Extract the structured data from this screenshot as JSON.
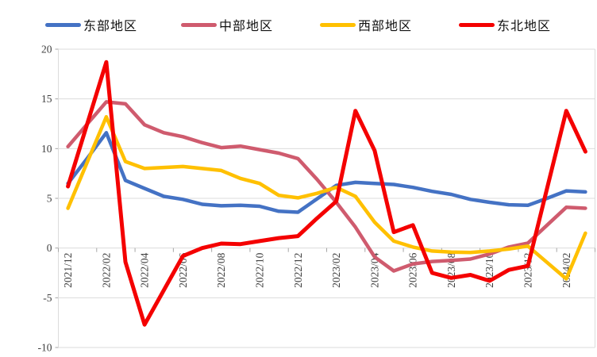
{
  "chart_data": {
    "type": "line",
    "title": "",
    "xlabel": "",
    "ylabel": "",
    "x": [
      "2021/12",
      "2022/01",
      "2022/02",
      "2022/03",
      "2022/04",
      "2022/05",
      "2022/06",
      "2022/07",
      "2022/08",
      "2022/09",
      "2022/10",
      "2022/11",
      "2022/12",
      "2023/01",
      "2023/02",
      "2023/03",
      "2023/04",
      "2023/05",
      "2023/06",
      "2023/07",
      "2023/08",
      "2023/09",
      "2023/10",
      "2023/11",
      "2023/12",
      "2024/01",
      "2024/02",
      "2024/03"
    ],
    "x_label_interval": 2,
    "x_labels_shown": [
      "2021/12",
      "2022/02",
      "2022/04",
      "2022/06",
      "2022/08",
      "2022/10",
      "2022/12",
      "2023/02",
      "2023/04",
      "2023/06",
      "2023/08",
      "2023/10",
      "2023/12",
      "2024/02"
    ],
    "x_label_rotation": -90,
    "ylim": [
      -10,
      20
    ],
    "y_ticks": [
      20,
      15,
      10,
      5,
      0,
      -5,
      -10
    ],
    "grid": true,
    "legend_position": "top",
    "series": [
      {
        "name": "东部地区",
        "color": "#4472C4",
        "values": [
          6.5,
          9.0,
          11.6,
          6.8,
          6.0,
          5.2,
          4.9,
          4.4,
          4.25,
          4.3,
          4.2,
          3.7,
          3.6,
          4.95,
          6.3,
          6.6,
          6.5,
          6.4,
          6.1,
          5.7,
          5.4,
          4.9,
          4.6,
          4.35,
          4.3,
          5.0,
          5.75,
          5.65
        ]
      },
      {
        "name": "中部地区",
        "color": "#CF5B6E",
        "values": [
          10.2,
          12.45,
          14.7,
          14.5,
          12.4,
          11.6,
          11.2,
          10.6,
          10.1,
          10.25,
          9.9,
          9.55,
          9.0,
          6.9,
          4.6,
          2.1,
          -0.9,
          -2.3,
          -1.6,
          -1.35,
          -1.25,
          -1.1,
          -0.6,
          0.1,
          0.5,
          2.3,
          4.1,
          4.0
        ]
      },
      {
        "name": "西部地区",
        "color": "#FFC000",
        "values": [
          4.0,
          8.6,
          13.2,
          8.7,
          8.0,
          8.1,
          8.2,
          8.0,
          7.8,
          7.0,
          6.5,
          5.3,
          5.05,
          5.5,
          6.1,
          5.2,
          2.6,
          0.7,
          0.1,
          -0.3,
          -0.4,
          -0.45,
          -0.3,
          -0.1,
          0.2,
          -1.45,
          -3.1,
          1.5
        ]
      },
      {
        "name": "东北地区",
        "color": "#F40000",
        "values": [
          6.2,
          12.45,
          18.7,
          -1.4,
          -7.7,
          -4.25,
          -0.8,
          0.0,
          0.45,
          0.4,
          0.7,
          1.0,
          1.2,
          3.0,
          4.7,
          13.8,
          9.8,
          1.6,
          2.3,
          -2.5,
          -3.0,
          -2.7,
          -3.3,
          -2.2,
          -1.8,
          6.0,
          13.8,
          9.7
        ]
      }
    ],
    "colors": {
      "grid": "#DBDBDB",
      "tick": "#A6A6A6",
      "axis_text": "#404040",
      "background": "#FFFFFF"
    }
  }
}
